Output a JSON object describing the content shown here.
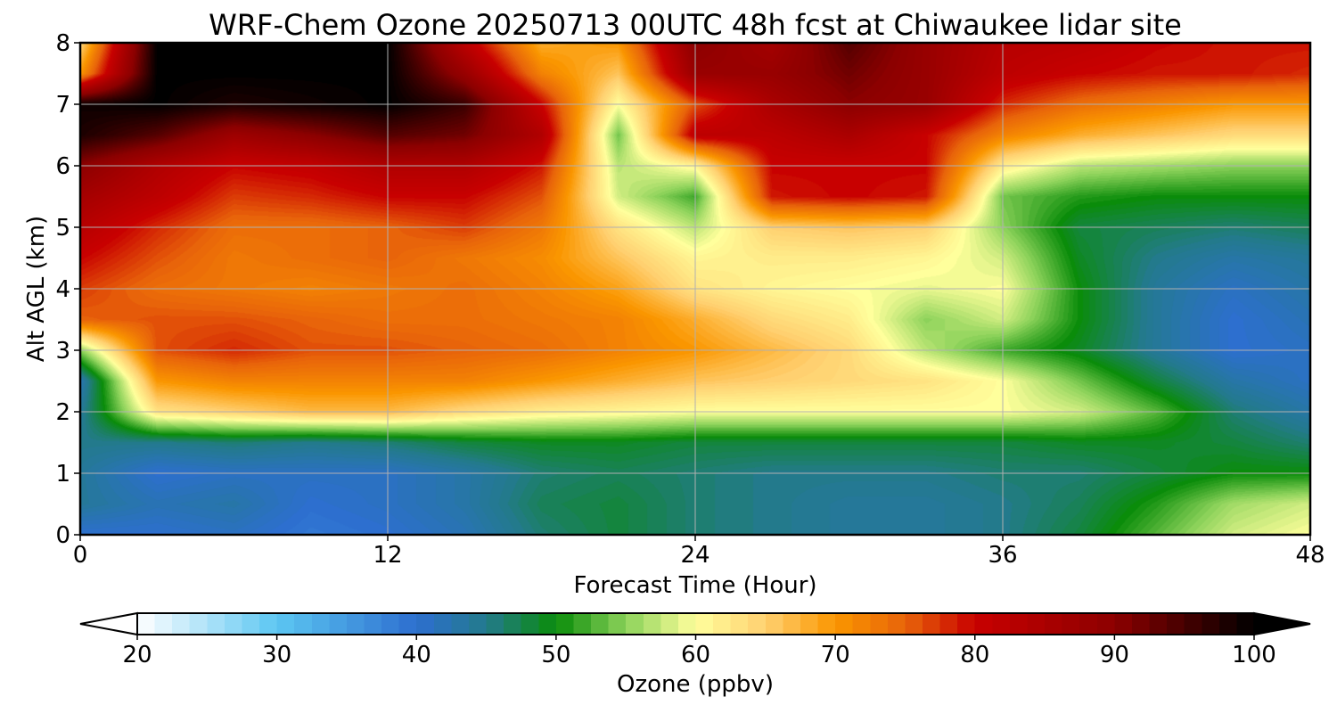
{
  "chart_data": {
    "type": "heatmap",
    "title": "WRF-Chem Ozone  20250713 00UTC 48h fcst at Chiwaukee lidar site",
    "xlabel": "Forecast Time (Hour)",
    "ylabel": "Alt AGL (km)",
    "xlim": [
      0,
      48
    ],
    "ylim": [
      0,
      8
    ],
    "xticks": [
      0,
      12,
      24,
      36,
      48
    ],
    "yticks": [
      0,
      1,
      2,
      3,
      4,
      5,
      6,
      7,
      8
    ],
    "grid": true,
    "x": [
      0,
      3,
      6,
      9,
      12,
      15,
      18,
      21,
      24,
      27,
      30,
      33,
      36,
      39,
      42,
      45,
      48
    ],
    "y": [
      0,
      0.5,
      1,
      1.5,
      2,
      2.5,
      3,
      3.5,
      4,
      4.5,
      5,
      5.5,
      6,
      6.5,
      7,
      7.5,
      8
    ],
    "z": [
      [
        40,
        40,
        41,
        39,
        40,
        42,
        46,
        48,
        46,
        45,
        44,
        44,
        45,
        48,
        53,
        58,
        60
      ],
      [
        44,
        42,
        43,
        40,
        41,
        43,
        47,
        48,
        46,
        45,
        44,
        44,
        45,
        47,
        51,
        56,
        58
      ],
      [
        44,
        40,
        41,
        41,
        41,
        43,
        46,
        47,
        46,
        45,
        45,
        45,
        46,
        46,
        48,
        50,
        50
      ],
      [
        45,
        45,
        46,
        45,
        46,
        48,
        49,
        49,
        48,
        48,
        48,
        48,
        48,
        49,
        49,
        48,
        46
      ],
      [
        44,
        63,
        65,
        67,
        67,
        64,
        62,
        61,
        60,
        60,
        60,
        60,
        60,
        58,
        53,
        46,
        43
      ],
      [
        42,
        70,
        72,
        72,
        72,
        72,
        70,
        68,
        66,
        65,
        64,
        63,
        60,
        54,
        48,
        43,
        41
      ],
      [
        55,
        76,
        78,
        76,
        76,
        75,
        74,
        72,
        70,
        67,
        64,
        57,
        52,
        49,
        44,
        40,
        41
      ],
      [
        75,
        76,
        76,
        75,
        74,
        74,
        73,
        72,
        68,
        64,
        62,
        55,
        58,
        50,
        44,
        40,
        42
      ],
      [
        77,
        74,
        73,
        72,
        73,
        74,
        72,
        69,
        63,
        61,
        60,
        59,
        60,
        50,
        44,
        41,
        43
      ],
      [
        80,
        76,
        73,
        74,
        75,
        73,
        71,
        66,
        61,
        62,
        62,
        61,
        58,
        49,
        45,
        43,
        44
      ],
      [
        83,
        78,
        74,
        74,
        75,
        77,
        73,
        63,
        57,
        65,
        66,
        65,
        55,
        48,
        47,
        46,
        47
      ],
      [
        86,
        82,
        77,
        78,
        80,
        80,
        76,
        58,
        52,
        79,
        80,
        79,
        54,
        51,
        50,
        50,
        50
      ],
      [
        90,
        84,
        80,
        81,
        84,
        84,
        79,
        57,
        61,
        80,
        80,
        80,
        62,
        57,
        56,
        55,
        55
      ],
      [
        98,
        94,
        87,
        90,
        94,
        92,
        84,
        54,
        82,
        82,
        85,
        80,
        72,
        68,
        66,
        64,
        64
      ],
      [
        99,
        100,
        98,
        99,
        100,
        96,
        80,
        60,
        76,
        85,
        90,
        88,
        78,
        74,
        72,
        70,
        70
      ],
      [
        70,
        100,
        100,
        100,
        100,
        88,
        72,
        66,
        88,
        88,
        92,
        88,
        82,
        80,
        79,
        79,
        78
      ],
      [
        64,
        100,
        100,
        100,
        100,
        82,
        68,
        70,
        90,
        86,
        94,
        88,
        83,
        82,
        80,
        79,
        79
      ]
    ],
    "colorbar": {
      "label": "Ozone  (ppbv)",
      "min": 20,
      "max": 100,
      "ticks": [
        20,
        30,
        40,
        50,
        60,
        70,
        80,
        90,
        100
      ],
      "extend": "both",
      "stops": [
        {
          "v": 20,
          "c": "#ffffff"
        },
        {
          "v": 30,
          "c": "#5cc6f2"
        },
        {
          "v": 40,
          "c": "#2d6fcf"
        },
        {
          "v": 45,
          "c": "#237a8c"
        },
        {
          "v": 50,
          "c": "#0a8c0a"
        },
        {
          "v": 55,
          "c": "#8cd25a"
        },
        {
          "v": 60,
          "c": "#ffff9c"
        },
        {
          "v": 65,
          "c": "#ffd070"
        },
        {
          "v": 70,
          "c": "#fa9600"
        },
        {
          "v": 75,
          "c": "#e8640a"
        },
        {
          "v": 80,
          "c": "#c80000"
        },
        {
          "v": 90,
          "c": "#8c0000"
        },
        {
          "v": 100,
          "c": "#000000"
        }
      ]
    }
  }
}
